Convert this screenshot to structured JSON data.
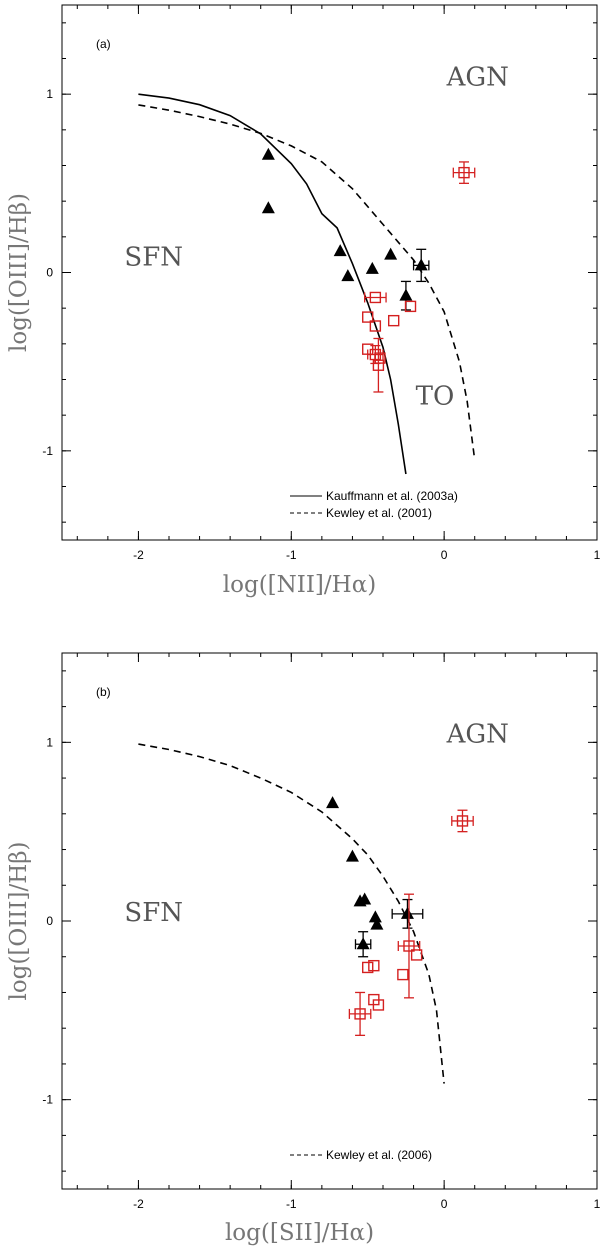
{
  "chart_data": [
    {
      "type": "scatter",
      "panel_label": "(a)",
      "xlabel": "log([NII]/Hα)",
      "ylabel": "log([OIII]/Hβ)",
      "xlim": [
        -2.5,
        1.0
      ],
      "ylim": [
        -1.5,
        1.5
      ],
      "x_ticks": [
        -2,
        -1,
        0,
        1
      ],
      "y_ticks": [
        -1,
        0,
        1
      ],
      "x_tick_labels": [
        "-2",
        "-1",
        "0",
        "1"
      ],
      "y_tick_labels": [
        "-1",
        "0",
        "1"
      ],
      "regions": [
        {
          "label": "AGN",
          "x": 0.22,
          "y": 1.05
        },
        {
          "label": "SFN",
          "x": -1.9,
          "y": 0.04
        },
        {
          "label": "TO",
          "x": -0.06,
          "y": -0.74
        }
      ],
      "curves": [
        {
          "name": "Kauffmann et al. (2003a)",
          "style": "solid",
          "points": [
            [
              -2.0,
              1.0
            ],
            [
              -1.8,
              0.978
            ],
            [
              -1.6,
              0.941
            ],
            [
              -1.4,
              0.88
            ],
            [
              -1.2,
              0.777
            ],
            [
              -1.0,
              0.61
            ],
            [
              -0.9,
              0.497
            ],
            [
              -0.8,
              0.33
            ],
            [
              -0.7,
              0.25
            ],
            [
              -0.6,
              0.05
            ],
            [
              -0.5,
              -0.17
            ],
            [
              -0.4,
              -0.42
            ],
            [
              -0.35,
              -0.6
            ],
            [
              -0.3,
              -0.85
            ],
            [
              -0.25,
              -1.13
            ]
          ]
        },
        {
          "name": "Kewley et al. (2001)",
          "style": "dashed",
          "points": [
            [
              -2.0,
              0.94
            ],
            [
              -1.8,
              0.91
            ],
            [
              -1.6,
              0.874
            ],
            [
              -1.4,
              0.832
            ],
            [
              -1.2,
              0.78
            ],
            [
              -1.0,
              0.71
            ],
            [
              -0.8,
              0.62
            ],
            [
              -0.6,
              0.47
            ],
            [
              -0.4,
              0.27
            ],
            [
              -0.2,
              0.07
            ],
            [
              -0.1,
              -0.06
            ],
            [
              0.0,
              -0.22
            ],
            [
              0.1,
              -0.5
            ],
            [
              0.15,
              -0.72
            ],
            [
              0.2,
              -1.05
            ]
          ]
        }
      ],
      "legend": [
        {
          "label": "Kauffmann et al. (2003a)",
          "style": "solid"
        },
        {
          "label": "Kewley et al. (2001)",
          "style": "dashed"
        }
      ],
      "series": [
        {
          "name": "triangles",
          "marker": "triangle",
          "color": "#000000",
          "points": [
            {
              "x": -1.15,
              "y": 0.66
            },
            {
              "x": -1.15,
              "y": 0.36
            },
            {
              "x": -0.68,
              "y": 0.12
            },
            {
              "x": -0.63,
              "y": -0.02
            },
            {
              "x": -0.47,
              "y": 0.02
            },
            {
              "x": -0.35,
              "y": 0.1
            },
            {
              "x": -0.25,
              "y": -0.13,
              "yerr": 0.08
            },
            {
              "x": -0.15,
              "y": 0.04,
              "yerr": 0.09,
              "xerr": 0.05
            }
          ]
        },
        {
          "name": "squares",
          "marker": "square",
          "color": "#d42020",
          "points": [
            {
              "x": 0.13,
              "y": 0.56,
              "xerr": 0.07,
              "yerr": 0.06
            },
            {
              "x": -0.45,
              "y": -0.14,
              "xerr": 0.07
            },
            {
              "x": -0.5,
              "y": -0.25
            },
            {
              "x": -0.45,
              "y": -0.3
            },
            {
              "x": -0.22,
              "y": -0.19
            },
            {
              "x": -0.33,
              "y": -0.27
            },
            {
              "x": -0.5,
              "y": -0.43
            },
            {
              "x": -0.45,
              "y": -0.46,
              "xerr": 0.05,
              "yerr": 0.05
            },
            {
              "x": -0.42,
              "y": -0.48
            },
            {
              "x": -0.43,
              "y": -0.52,
              "yerr": 0.15
            }
          ]
        }
      ]
    },
    {
      "type": "scatter",
      "panel_label": "(b)",
      "xlabel": "log([SII]/Hα)",
      "ylabel": "log([OIII]/Hβ)",
      "xlim": [
        -2.5,
        1.0
      ],
      "ylim": [
        -1.5,
        1.5
      ],
      "x_ticks": [
        -2,
        -1,
        0,
        1
      ],
      "y_ticks": [
        -1,
        0,
        1
      ],
      "x_tick_labels": [
        "-2",
        "-1",
        "0",
        "1"
      ],
      "y_tick_labels": [
        "-1",
        "0",
        "1"
      ],
      "regions": [
        {
          "label": "AGN",
          "x": 0.22,
          "y": 1.0
        },
        {
          "label": "SFN",
          "x": -1.9,
          "y": 0.0
        }
      ],
      "curves": [
        {
          "name": "Kewley et al. (2006)",
          "style": "dashed",
          "points": [
            [
              -2.0,
              0.99
            ],
            [
              -1.8,
              0.96
            ],
            [
              -1.6,
              0.92
            ],
            [
              -1.4,
              0.87
            ],
            [
              -1.2,
              0.8
            ],
            [
              -1.0,
              0.72
            ],
            [
              -0.8,
              0.61
            ],
            [
              -0.6,
              0.46
            ],
            [
              -0.5,
              0.37
            ],
            [
              -0.4,
              0.25
            ],
            [
              -0.3,
              0.11
            ],
            [
              -0.2,
              -0.06
            ],
            [
              -0.1,
              -0.3
            ],
            [
              -0.05,
              -0.5
            ],
            [
              0.0,
              -0.91
            ]
          ]
        }
      ],
      "legend": [
        {
          "label": "Kewley et al. (2006)",
          "style": "dashed"
        }
      ],
      "series": [
        {
          "name": "triangles",
          "marker": "triangle",
          "color": "#000000",
          "points": [
            {
              "x": -0.73,
              "y": 0.66
            },
            {
              "x": -0.6,
              "y": 0.36
            },
            {
              "x": -0.55,
              "y": 0.11
            },
            {
              "x": -0.52,
              "y": 0.12
            },
            {
              "x": -0.45,
              "y": 0.02
            },
            {
              "x": -0.44,
              "y": -0.02
            },
            {
              "x": -0.53,
              "y": -0.13,
              "xerr": 0.05,
              "yerr": 0.07
            },
            {
              "x": -0.24,
              "y": 0.04,
              "xerr": 0.1,
              "yerr": 0.08
            }
          ]
        },
        {
          "name": "squares",
          "marker": "square",
          "color": "#d42020",
          "points": [
            {
              "x": 0.12,
              "y": 0.56,
              "xerr": 0.07,
              "yerr": 0.06
            },
            {
              "x": -0.23,
              "y": -0.14,
              "xerr": 0.07,
              "yerr": 0.29
            },
            {
              "x": -0.18,
              "y": -0.19
            },
            {
              "x": -0.46,
              "y": -0.25
            },
            {
              "x": -0.5,
              "y": -0.26
            },
            {
              "x": -0.27,
              "y": -0.3
            },
            {
              "x": -0.46,
              "y": -0.44
            },
            {
              "x": -0.43,
              "y": -0.47
            },
            {
              "x": -0.55,
              "y": -0.52,
              "xerr": 0.07,
              "yerr": 0.12
            }
          ]
        }
      ]
    }
  ]
}
